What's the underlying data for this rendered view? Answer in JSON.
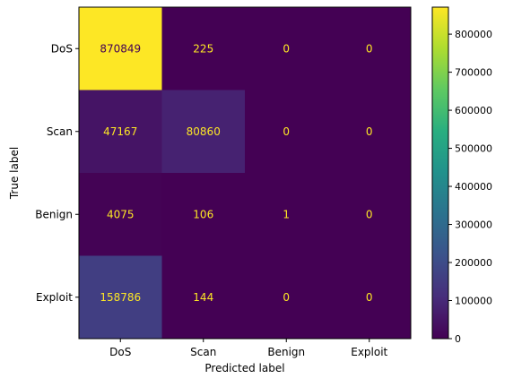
{
  "chart_data": {
    "type": "heatmap",
    "title": "",
    "xlabel": "Predicted label",
    "ylabel": "True label",
    "x_categories": [
      "DoS",
      "Scan",
      "Benign",
      "Exploit"
    ],
    "y_categories": [
      "DoS",
      "Scan",
      "Benign",
      "Exploit"
    ],
    "values": [
      [
        870849,
        225,
        0,
        0
      ],
      [
        47167,
        80860,
        0,
        0
      ],
      [
        4075,
        106,
        1,
        0
      ],
      [
        158786,
        144,
        0,
        0
      ]
    ],
    "colormap": "viridis",
    "color_range": [
      0,
      870849
    ],
    "colorbar_ticks": [
      0,
      100000,
      200000,
      300000,
      400000,
      500000,
      600000,
      700000,
      800000
    ],
    "colorbar_tick_labels": [
      "0",
      "100000",
      "200000",
      "300000",
      "400000",
      "500000",
      "600000",
      "700000",
      "800000"
    ],
    "text_color_dark_cells": "#fde725",
    "text_color_light_cells": "#440154"
  }
}
